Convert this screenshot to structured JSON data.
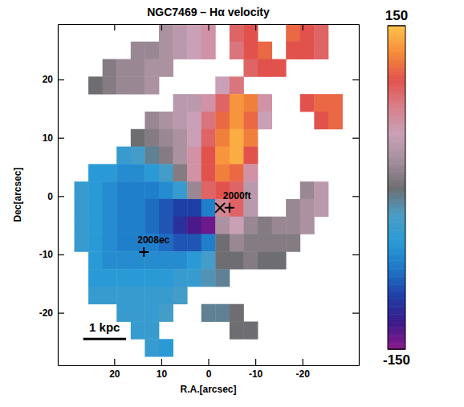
{
  "chart_data": {
    "type": "heatmap",
    "title": "NGC7469 – Hα velocity",
    "x_label": "R.A.[arcsec]",
    "y_label": "Dec[arcsec]",
    "xlim": [
      32,
      -32
    ],
    "ylim": [
      -29,
      29.5
    ],
    "xticks": [
      20,
      10,
      0,
      -10,
      -20
    ],
    "yticks": [
      -20,
      -10,
      0,
      10,
      20
    ],
    "grid": false,
    "x": [
      30,
      27,
      24,
      21,
      18,
      15,
      12,
      9,
      6,
      3,
      0,
      -3,
      -6,
      -9,
      -12,
      -15,
      -18,
      -21,
      -24,
      -27,
      -30
    ],
    "y": [
      28,
      25,
      22,
      19,
      16,
      13,
      10,
      7,
      4,
      1,
      -2,
      -5,
      -8,
      -11,
      -14,
      -17,
      -20,
      -23,
      -26
    ],
    "values": [
      [
        null,
        null,
        null,
        null,
        null,
        null,
        null,
        30,
        40,
        50,
        60,
        null,
        90,
        100,
        null,
        null,
        110,
        100,
        90,
        null,
        null
      ],
      [
        null,
        null,
        null,
        null,
        null,
        20,
        20,
        30,
        40,
        50,
        60,
        null,
        80,
        100,
        110,
        null,
        100,
        100,
        90,
        null,
        null
      ],
      [
        null,
        null,
        null,
        10,
        20,
        20,
        30,
        30,
        null,
        null,
        null,
        null,
        null,
        90,
        100,
        100,
        null,
        null,
        null,
        null,
        null
      ],
      [
        null,
        null,
        0,
        10,
        20,
        20,
        30,
        null,
        null,
        null,
        null,
        50,
        80,
        null,
        null,
        null,
        null,
        null,
        null,
        null,
        null
      ],
      [
        null,
        null,
        null,
        null,
        null,
        null,
        null,
        null,
        40,
        40,
        60,
        90,
        130,
        120,
        60,
        null,
        null,
        100,
        110,
        110,
        null
      ],
      [
        null,
        null,
        null,
        null,
        null,
        null,
        20,
        30,
        40,
        50,
        80,
        110,
        130,
        110,
        50,
        null,
        null,
        null,
        100,
        110,
        null
      ],
      [
        null,
        null,
        null,
        null,
        null,
        0,
        10,
        20,
        30,
        50,
        90,
        120,
        140,
        120,
        null,
        null,
        null,
        null,
        null,
        null,
        null
      ],
      [
        null,
        null,
        null,
        null,
        -40,
        -30,
        -10,
        10,
        30,
        60,
        100,
        130,
        140,
        100,
        null,
        null,
        null,
        null,
        null,
        null,
        null
      ],
      [
        null,
        null,
        -50,
        -50,
        -60,
        -60,
        -50,
        -30,
        10,
        60,
        100,
        120,
        110,
        60,
        null,
        null,
        null,
        null,
        null,
        null,
        null
      ],
      [
        null,
        -40,
        -50,
        -60,
        -70,
        -70,
        -70,
        -60,
        -40,
        20,
        90,
        100,
        90,
        40,
        null,
        null,
        null,
        20,
        40,
        null,
        null
      ],
      [
        null,
        -40,
        -50,
        -60,
        -70,
        -70,
        -80,
        -90,
        -100,
        -100,
        -70,
        70,
        90,
        40,
        null,
        null,
        20,
        30,
        40,
        null,
        null
      ],
      [
        null,
        -40,
        -50,
        -60,
        -70,
        -70,
        -80,
        -90,
        -110,
        -130,
        -140,
        30,
        50,
        20,
        10,
        20,
        20,
        30,
        null,
        null,
        null
      ],
      [
        null,
        -40,
        -50,
        -60,
        -70,
        -70,
        -70,
        -80,
        -90,
        -90,
        -70,
        0,
        20,
        10,
        10,
        10,
        10,
        null,
        null,
        null,
        null
      ],
      [
        null,
        null,
        -50,
        -60,
        -60,
        -60,
        -60,
        -60,
        -60,
        -50,
        -30,
        0,
        0,
        10,
        0,
        0,
        null,
        null,
        null,
        null,
        null
      ],
      [
        null,
        null,
        -50,
        -50,
        -50,
        -50,
        -50,
        -50,
        -40,
        -40,
        -20,
        -10,
        null,
        null,
        null,
        null,
        null,
        null,
        null,
        null,
        null
      ],
      [
        null,
        null,
        -40,
        -40,
        -40,
        -40,
        -40,
        -40,
        -30,
        null,
        null,
        null,
        null,
        null,
        null,
        null,
        null,
        null,
        null,
        null,
        null
      ],
      [
        null,
        null,
        null,
        null,
        -40,
        -40,
        -40,
        -30,
        null,
        null,
        -10,
        -10,
        0,
        null,
        null,
        null,
        null,
        null,
        null,
        null,
        null
      ],
      [
        null,
        null,
        null,
        null,
        null,
        -40,
        -40,
        null,
        null,
        null,
        null,
        null,
        0,
        0,
        null,
        null,
        null,
        null,
        null,
        null,
        null
      ],
      [
        null,
        null,
        null,
        null,
        null,
        null,
        -40,
        -50,
        null,
        null,
        null,
        null,
        null,
        null,
        null,
        null,
        null,
        null,
        null,
        null,
        null
      ]
    ],
    "colorbar": {
      "range": [
        -150,
        150
      ],
      "ticks": [
        -150,
        150
      ]
    },
    "annotations": [
      {
        "text": "2000ft",
        "x": -4.5,
        "y": -2
      },
      {
        "text": "2008ec",
        "x": 13.7,
        "y": -9.6
      }
    ],
    "center_marker": {
      "x": -2.5,
      "y": -2
    },
    "scale_bar": {
      "label": "1 kpc",
      "x": 26.6,
      "y": -24.5,
      "length": 9.1
    }
  }
}
